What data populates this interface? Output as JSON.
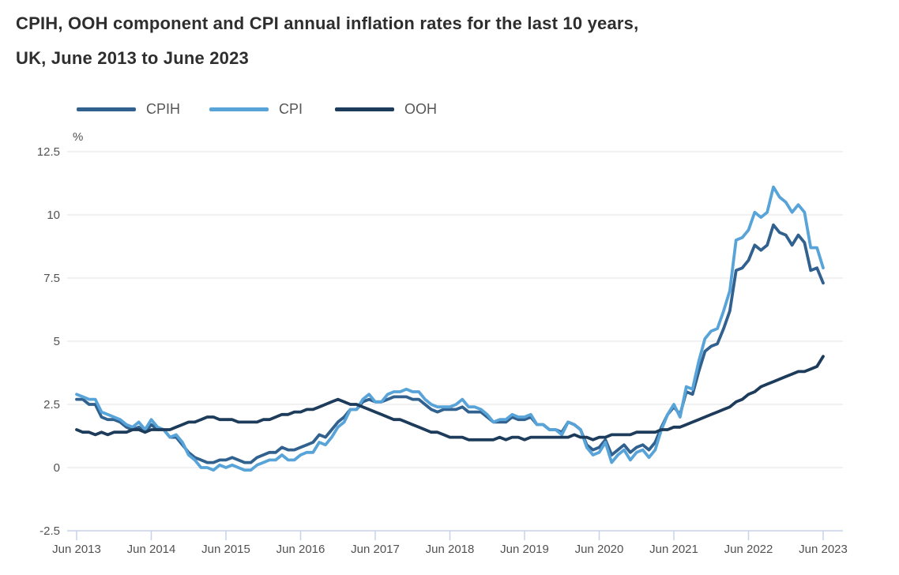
{
  "title": {
    "line1": "CPIH, OOH component and CPI annual inflation rates for the last 10 years,",
    "line2": "UK, June 2013 to June 2023"
  },
  "chart_data": {
    "type": "line",
    "title": "CPIH, OOH component and CPI annual inflation rates for the last 10 years, UK, June 2013 to June 2023",
    "unit_label": "%",
    "xlabel": "",
    "ylabel": "%",
    "ylim": [
      -2.5,
      12.5
    ],
    "y_tick_labels": [
      "12.5",
      "10",
      "7.5",
      "5",
      "2.5",
      "0",
      "-2.5"
    ],
    "y_ticks": [
      12.5,
      10,
      7.5,
      5,
      2.5,
      0,
      -2.5
    ],
    "x_tick_labels": [
      "Jun 2013",
      "Jun 2014",
      "Jun 2015",
      "Jun 2016",
      "Jun 2017",
      "Jun 2018",
      "Jun 2019",
      "Jun 2020",
      "Jun 2021",
      "Jun 2022",
      "Jun 2023"
    ],
    "x_frequency": "monthly",
    "legend_position": "top",
    "grid": "horizontal",
    "series": [
      {
        "name": "CPIH",
        "color": "#31618f",
        "values": [
          2.7,
          2.7,
          2.5,
          2.5,
          2.0,
          1.9,
          1.9,
          1.8,
          1.6,
          1.5,
          1.6,
          1.4,
          1.7,
          1.5,
          1.5,
          1.2,
          1.2,
          0.9,
          0.6,
          0.4,
          0.3,
          0.2,
          0.2,
          0.3,
          0.3,
          0.4,
          0.3,
          0.2,
          0.2,
          0.4,
          0.5,
          0.6,
          0.6,
          0.8,
          0.7,
          0.7,
          0.8,
          0.9,
          1.0,
          1.3,
          1.2,
          1.5,
          1.8,
          2.0,
          2.3,
          2.3,
          2.6,
          2.7,
          2.6,
          2.6,
          2.7,
          2.8,
          2.8,
          2.8,
          2.7,
          2.7,
          2.5,
          2.3,
          2.2,
          2.3,
          2.3,
          2.3,
          2.4,
          2.2,
          2.2,
          2.2,
          2.0,
          1.8,
          1.8,
          1.8,
          2.0,
          1.9,
          1.9,
          2.0,
          1.7,
          1.7,
          1.5,
          1.5,
          1.4,
          1.8,
          1.7,
          1.5,
          0.9,
          0.7,
          0.8,
          1.1,
          0.5,
          0.7,
          0.9,
          0.6,
          0.8,
          0.9,
          0.7,
          1.0,
          1.6,
          2.1,
          2.4,
          2.1,
          3.0,
          2.9,
          3.8,
          4.6,
          4.8,
          4.9,
          5.5,
          6.2,
          7.8,
          7.9,
          8.2,
          8.8,
          8.6,
          8.8,
          9.6,
          9.3,
          9.2,
          8.8,
          9.2,
          8.9,
          7.8,
          7.9,
          7.3
        ]
      },
      {
        "name": "CPI",
        "color": "#58a4d9",
        "values": [
          2.9,
          2.8,
          2.7,
          2.7,
          2.2,
          2.1,
          2.0,
          1.9,
          1.7,
          1.6,
          1.8,
          1.5,
          1.9,
          1.6,
          1.5,
          1.2,
          1.3,
          1.0,
          0.5,
          0.3,
          0.0,
          0.0,
          -0.1,
          0.1,
          0.0,
          0.1,
          0.0,
          -0.1,
          -0.1,
          0.1,
          0.2,
          0.3,
          0.3,
          0.5,
          0.3,
          0.3,
          0.5,
          0.6,
          0.6,
          1.0,
          0.9,
          1.2,
          1.6,
          1.8,
          2.3,
          2.3,
          2.7,
          2.9,
          2.6,
          2.6,
          2.9,
          3.0,
          3.0,
          3.1,
          3.0,
          3.0,
          2.7,
          2.5,
          2.4,
          2.4,
          2.4,
          2.5,
          2.7,
          2.4,
          2.4,
          2.3,
          2.1,
          1.8,
          1.9,
          1.9,
          2.1,
          2.0,
          2.0,
          2.1,
          1.7,
          1.7,
          1.5,
          1.5,
          1.3,
          1.8,
          1.7,
          1.5,
          0.8,
          0.5,
          0.6,
          1.0,
          0.2,
          0.5,
          0.7,
          0.3,
          0.6,
          0.7,
          0.4,
          0.7,
          1.5,
          2.1,
          2.5,
          2.0,
          3.2,
          3.1,
          4.2,
          5.1,
          5.4,
          5.5,
          6.2,
          7.0,
          9.0,
          9.1,
          9.4,
          10.1,
          9.9,
          10.1,
          11.1,
          10.7,
          10.5,
          10.1,
          10.4,
          10.1,
          8.7,
          8.7,
          7.9
        ]
      },
      {
        "name": "OOH",
        "color": "#1d3b5a",
        "values": [
          1.5,
          1.4,
          1.4,
          1.3,
          1.4,
          1.3,
          1.4,
          1.4,
          1.4,
          1.5,
          1.5,
          1.4,
          1.5,
          1.5,
          1.5,
          1.5,
          1.6,
          1.7,
          1.8,
          1.8,
          1.9,
          2.0,
          2.0,
          1.9,
          1.9,
          1.9,
          1.8,
          1.8,
          1.8,
          1.8,
          1.9,
          1.9,
          2.0,
          2.1,
          2.1,
          2.2,
          2.2,
          2.3,
          2.3,
          2.4,
          2.5,
          2.6,
          2.7,
          2.6,
          2.5,
          2.5,
          2.4,
          2.3,
          2.2,
          2.1,
          2.0,
          1.9,
          1.9,
          1.8,
          1.7,
          1.6,
          1.5,
          1.4,
          1.4,
          1.3,
          1.2,
          1.2,
          1.2,
          1.1,
          1.1,
          1.1,
          1.1,
          1.1,
          1.2,
          1.1,
          1.2,
          1.2,
          1.1,
          1.2,
          1.2,
          1.2,
          1.2,
          1.2,
          1.2,
          1.2,
          1.3,
          1.2,
          1.2,
          1.1,
          1.2,
          1.2,
          1.3,
          1.3,
          1.3,
          1.3,
          1.4,
          1.4,
          1.4,
          1.4,
          1.5,
          1.5,
          1.6,
          1.6,
          1.7,
          1.8,
          1.9,
          2.0,
          2.1,
          2.2,
          2.3,
          2.4,
          2.6,
          2.7,
          2.9,
          3.0,
          3.2,
          3.3,
          3.4,
          3.5,
          3.6,
          3.7,
          3.8,
          3.8,
          3.9,
          4.0,
          4.4
        ]
      }
    ]
  },
  "colors": {
    "axis_line": "#c5d2e8",
    "grid_line": "#e3e3e3",
    "tick_label": "#525252",
    "title_text": "#2e2e2e",
    "legend_text": "#565656"
  }
}
